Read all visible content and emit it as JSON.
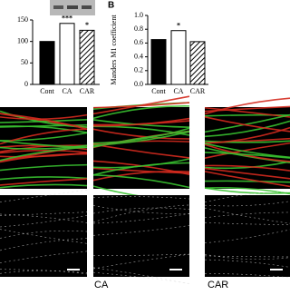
{
  "chart_data": [
    {
      "type": "bar",
      "categories": [
        "Cont",
        "CA",
        "CAR"
      ],
      "values": [
        100,
        142,
        126
      ],
      "annotations": [
        null,
        "***",
        "*"
      ],
      "bar_styles": [
        "solid",
        "open",
        "hatched"
      ],
      "color": "#000000",
      "ylim": [
        0,
        150
      ],
      "yticks": [
        0,
        50,
        100,
        150
      ]
    },
    {
      "type": "bar",
      "panel_label": "B",
      "ylabel": "Manders M1 coefficient",
      "categories": [
        "Cont",
        "CA",
        "CAR"
      ],
      "values": [
        0.65,
        0.78,
        0.62
      ],
      "annotations": [
        null,
        "*",
        null
      ],
      "bar_styles": [
        "solid",
        "open",
        "hatched"
      ],
      "color": "#000000",
      "ylim": [
        0,
        1
      ],
      "yticks": [
        {
          "value": 0,
          "label": "0.0"
        },
        0.2,
        0.4,
        0.6,
        0.8,
        {
          "value": 1,
          "label": "1.0"
        }
      ]
    }
  ],
  "image_labels": [
    "CA",
    "CAR"
  ]
}
